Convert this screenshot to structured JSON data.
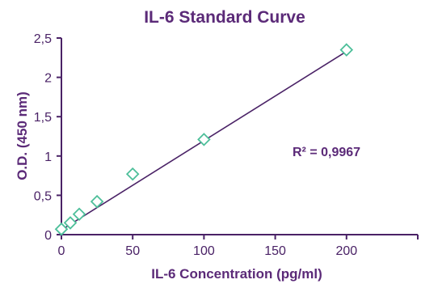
{
  "chart_data": {
    "type": "scatter",
    "title": "IL-6 Standard Curve",
    "xlabel": "IL-6 Concentration (pg/ml)",
    "ylabel": "O.D. (450 nm)",
    "xlim": [
      0,
      250
    ],
    "ylim": [
      0,
      2.5
    ],
    "x_ticks": [
      0,
      50,
      100,
      150,
      200,
      250
    ],
    "x_tick_labels": [
      "0",
      "50",
      "100",
      "150",
      "200",
      ""
    ],
    "y_ticks": [
      0,
      0.5,
      1,
      1.5,
      2,
      2.5
    ],
    "y_tick_labels": [
      "0",
      "0,5",
      "1",
      "1,5",
      "2",
      "2,5"
    ],
    "grid": false,
    "series": [
      {
        "values": [
          {
            "x": 0,
            "y": 0.07
          },
          {
            "x": 6.25,
            "y": 0.15
          },
          {
            "x": 12.5,
            "y": 0.26
          },
          {
            "x": 25,
            "y": 0.42
          },
          {
            "x": 50,
            "y": 0.77
          },
          {
            "x": 100,
            "y": 1.21
          },
          {
            "x": 200,
            "y": 2.35
          }
        ],
        "marker": "diamond-open",
        "color": "#4dbf9a"
      }
    ],
    "trendline": {
      "type": "linear",
      "x_range": [
        0,
        200
      ],
      "y_range": [
        0.06,
        2.33
      ],
      "color": "#4a2266"
    },
    "annotations": [
      {
        "text": "R² = 0,9967"
      }
    ]
  }
}
